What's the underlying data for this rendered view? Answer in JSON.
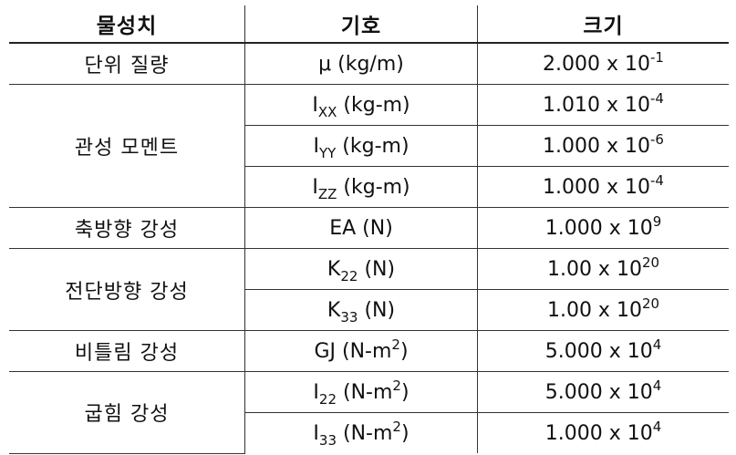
{
  "table": {
    "headers": [
      "물성치",
      "기호",
      "크기"
    ],
    "groups": [
      {
        "name": "단위 질량",
        "rows": [
          {
            "sym": "μ",
            "sym_sub": "",
            "unit": " (kg/m)",
            "unit_sup": "",
            "unit_end": "",
            "mant": "2.000 x 10",
            "exp": "-1"
          }
        ]
      },
      {
        "name": "관성 모멘트",
        "rows": [
          {
            "sym": "I",
            "sym_sub": "XX",
            "unit": " (kg-m)",
            "unit_sup": "",
            "unit_end": "",
            "mant": "1.010 x 10",
            "exp": "-4"
          },
          {
            "sym": "I",
            "sym_sub": "YY",
            "unit": " (kg-m)",
            "unit_sup": "",
            "unit_end": "",
            "mant": "1.000 x 10",
            "exp": "-6"
          },
          {
            "sym": "I",
            "sym_sub": "ZZ",
            "unit": " (kg-m)",
            "unit_sup": "",
            "unit_end": "",
            "mant": "1.000 x 10",
            "exp": "-4"
          }
        ]
      },
      {
        "name": "축방향 강성",
        "rows": [
          {
            "sym": "EA",
            "sym_sub": "",
            "unit": " (N)",
            "unit_sup": "",
            "unit_end": "",
            "mant": "1.000 x 10",
            "exp": "9"
          }
        ]
      },
      {
        "name": "전단방향 강성",
        "rows": [
          {
            "sym": "K",
            "sym_sub": "22",
            "unit": " (N)",
            "unit_sup": "",
            "unit_end": "",
            "mant": "1.00 x 10",
            "exp": "20"
          },
          {
            "sym": "K",
            "sym_sub": "33",
            "unit": " (N)",
            "unit_sup": "",
            "unit_end": "",
            "mant": "1.00 x 10",
            "exp": "20"
          }
        ]
      },
      {
        "name": "비틀림 강성",
        "rows": [
          {
            "sym": "GJ",
            "sym_sub": "",
            "unit": " (N-m",
            "unit_sup": "2",
            "unit_end": ")",
            "mant": "5.000 x 10",
            "exp": "4"
          }
        ]
      },
      {
        "name": "굽힘 강성",
        "rows": [
          {
            "sym": "I",
            "sym_sub": "22",
            "unit": " (N-m",
            "unit_sup": "2",
            "unit_end": ")",
            "mant": "5.000 x 10",
            "exp": "4"
          },
          {
            "sym": "I",
            "sym_sub": "33",
            "unit": " (N-m",
            "unit_sup": "2",
            "unit_end": ")",
            "mant": "1.000 x 10",
            "exp": "4"
          }
        ]
      }
    ]
  }
}
